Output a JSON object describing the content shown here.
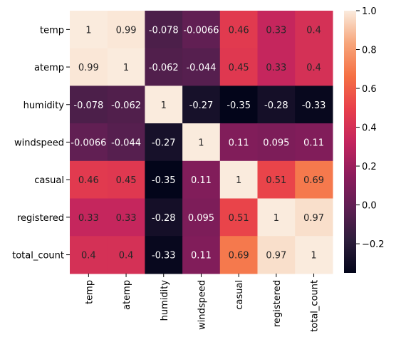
{
  "chart_data": {
    "type": "heatmap",
    "title": "",
    "xlabel": "",
    "ylabel": "",
    "rows": [
      "temp",
      "atemp",
      "humidity",
      "windspeed",
      "casual",
      "registered",
      "total_count"
    ],
    "columns": [
      "temp",
      "atemp",
      "humidity",
      "windspeed",
      "casual",
      "registered",
      "total_count"
    ],
    "values": [
      [
        1,
        0.99,
        -0.078,
        -0.0066,
        0.46,
        0.33,
        0.4
      ],
      [
        0.99,
        1,
        -0.062,
        -0.044,
        0.45,
        0.33,
        0.4
      ],
      [
        -0.078,
        -0.062,
        1,
        -0.27,
        -0.35,
        -0.28,
        -0.33
      ],
      [
        -0.0066,
        -0.044,
        -0.27,
        1,
        0.11,
        0.095,
        0.11
      ],
      [
        0.46,
        0.45,
        -0.35,
        0.11,
        1,
        0.51,
        0.69
      ],
      [
        0.33,
        0.33,
        -0.28,
        0.095,
        0.51,
        1,
        0.97
      ],
      [
        0.4,
        0.4,
        -0.33,
        0.11,
        0.69,
        0.97,
        1
      ]
    ],
    "cell_labels": [
      [
        "1",
        "0.99",
        "-0.078",
        "-0.0066",
        "0.46",
        "0.33",
        "0.4"
      ],
      [
        "0.99",
        "1",
        "-0.062",
        "-0.044",
        "0.45",
        "0.33",
        "0.4"
      ],
      [
        "-0.078",
        "-0.062",
        "1",
        "-0.27",
        "-0.35",
        "-0.28",
        "-0.33"
      ],
      [
        "-0.0066",
        "-0.044",
        "-0.27",
        "1",
        "0.11",
        "0.095",
        "0.11"
      ],
      [
        "0.46",
        "0.45",
        "-0.35",
        "0.11",
        "1",
        "0.51",
        "0.69"
      ],
      [
        "0.33",
        "0.33",
        "-0.28",
        "0.095",
        "0.51",
        "1",
        "0.97"
      ],
      [
        "0.4",
        "0.4",
        "-0.33",
        "0.11",
        "0.69",
        "0.97",
        "1"
      ]
    ],
    "colorbar": {
      "range": [
        -0.35,
        1.0
      ],
      "ticks": [
        -0.2,
        0.0,
        0.2,
        0.4,
        0.6,
        0.8,
        1.0
      ],
      "tick_labels": [
        "−0.2",
        "0.0",
        "0.2",
        "0.4",
        "0.6",
        "0.8",
        "1.0"
      ]
    },
    "colormap_stops": [
      [
        0.0,
        "#03051a"
      ],
      [
        0.125,
        "#2e1e3c"
      ],
      [
        0.25,
        "#5f1f53"
      ],
      [
        0.375,
        "#8e1c5c"
      ],
      [
        0.5,
        "#c4255e"
      ],
      [
        0.625,
        "#e83f4b"
      ],
      [
        0.75,
        "#f57044"
      ],
      [
        0.875,
        "#f7a57a"
      ],
      [
        1.0,
        "#faebdd"
      ]
    ],
    "dark_text_threshold": 0.5,
    "text_colors": {
      "on_dark": "#ffffff",
      "on_light": "#262626"
    }
  }
}
